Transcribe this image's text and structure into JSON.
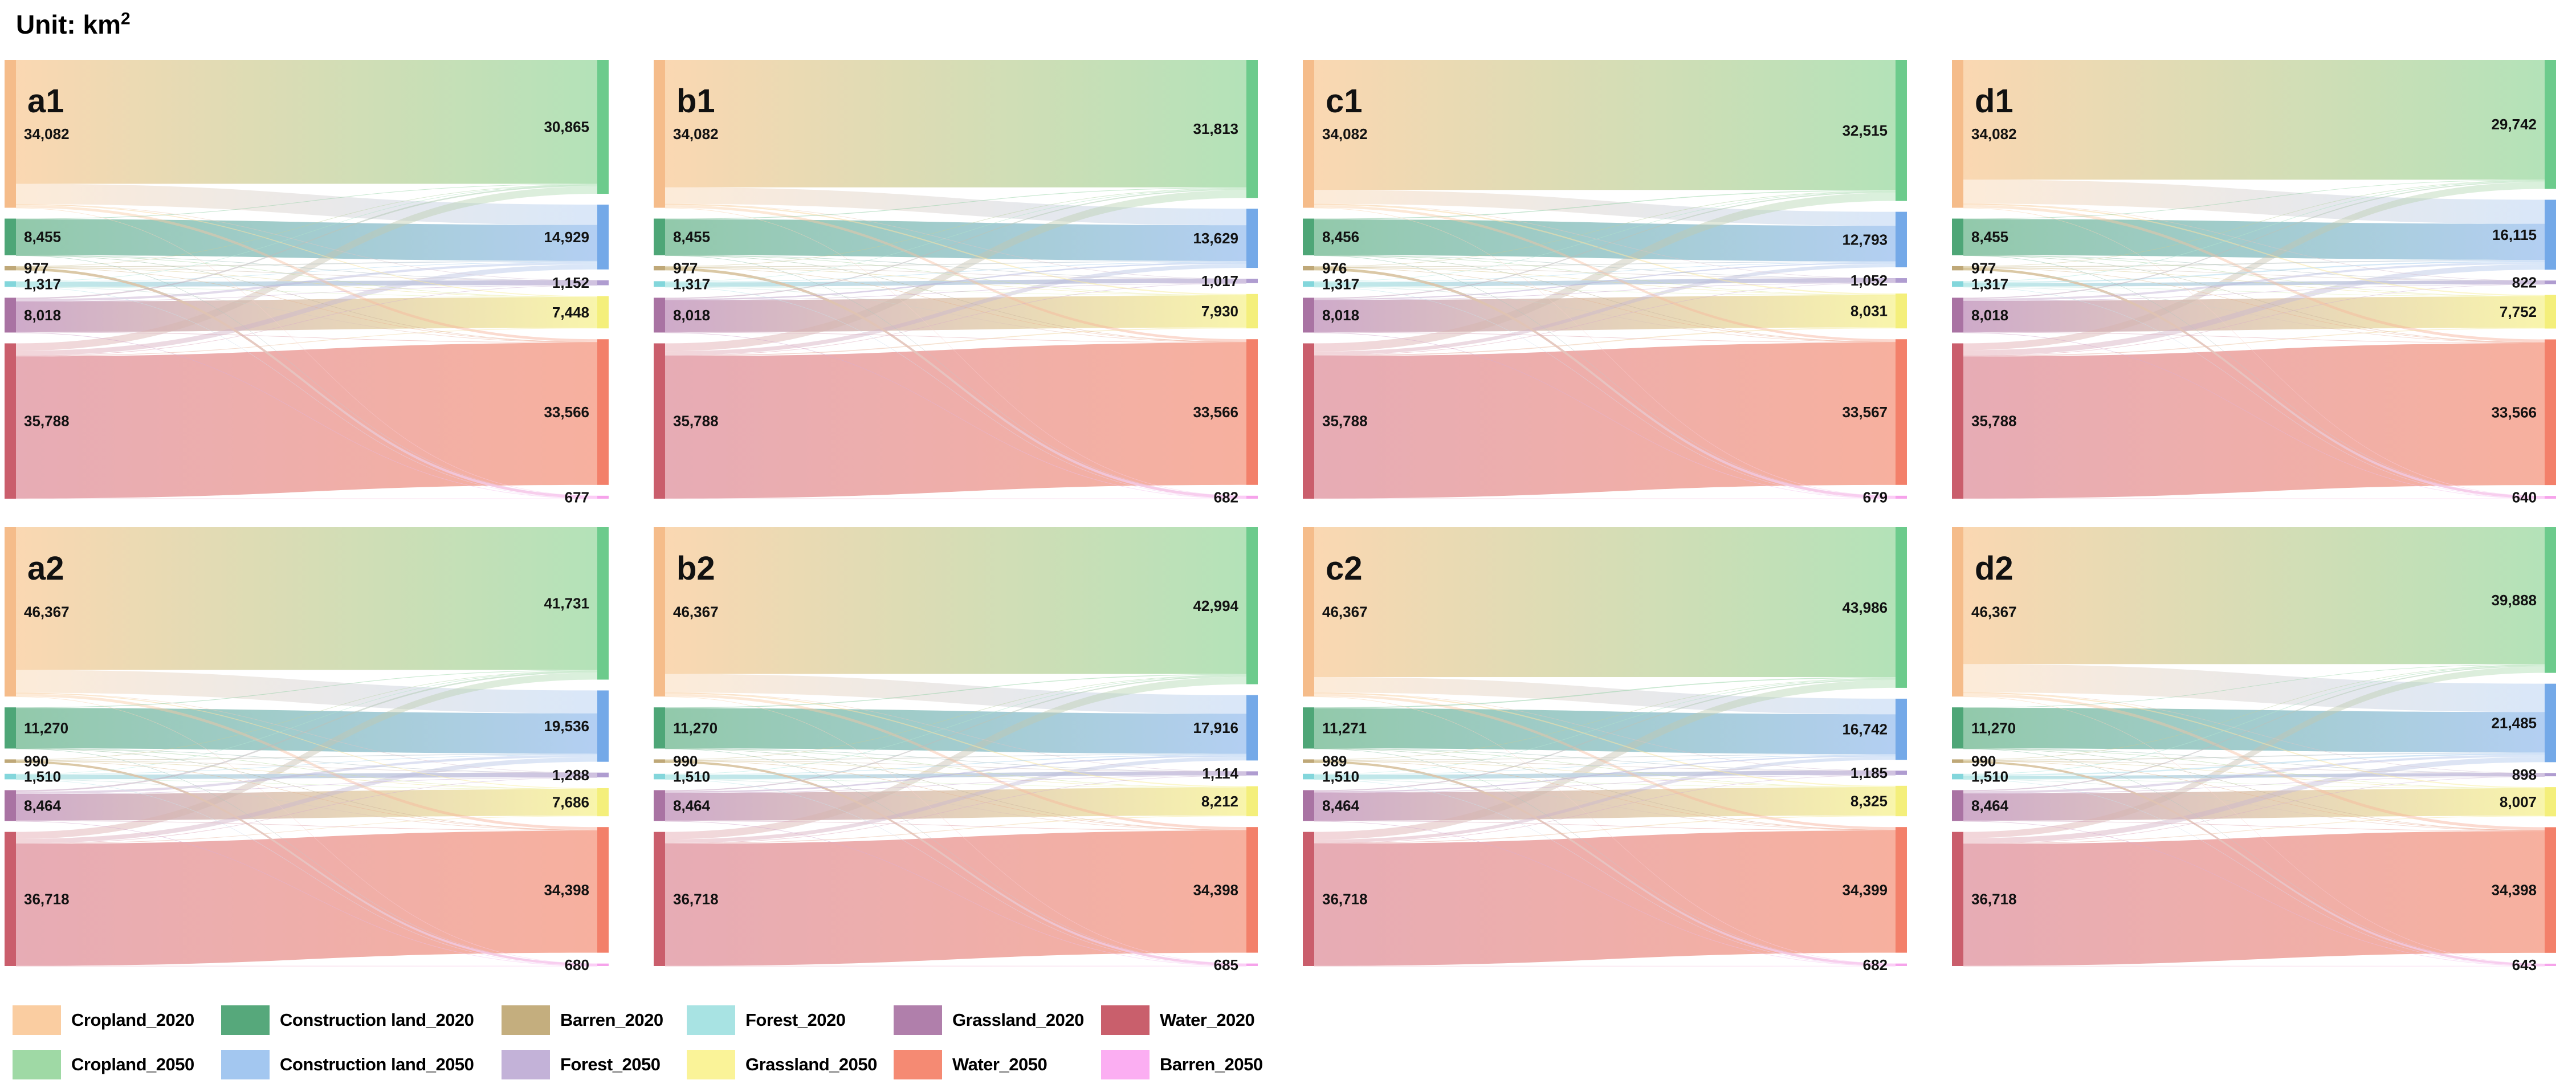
{
  "title": {
    "prefix": "Unit: km",
    "superscript": "2"
  },
  "colors": {
    "node_left": [
      "#F5BC8A",
      "#4EA677",
      "#BFA878",
      "#83D6DB",
      "#A973A3",
      "#CA5E6C"
    ],
    "node_right": [
      "#6CCB8C",
      "#74A9E8",
      "#AF9CD0",
      "#F4EF7B",
      "#F3806A",
      "#F6A3EB"
    ],
    "flow_left": [
      "#FAD3A9",
      "#86C3A1",
      "#D3C192",
      "#B7E9E8",
      "#C9A1C4",
      "#E4A3AD"
    ],
    "flow_right": [
      "#ABDFB1",
      "#ABCAF1",
      "#CBBBDC",
      "#F8F4A3",
      "#F6A894",
      "#FBC9F5"
    ],
    "legend_2020": [
      "#FACDA1",
      "#56A87B",
      "#C4AE7E",
      "#A8E3E3",
      "#B07FAB",
      "#C95F6C"
    ],
    "legend_2050": [
      "#9FD9A5",
      "#A3C7F0",
      "#C3B2D8",
      "#FAF398",
      "#F58A73",
      "#FBAEF2"
    ]
  },
  "chart_data": {
    "type": "sankey",
    "unit": "km2",
    "source_categories": [
      "Cropland_2020",
      "Construction land_2020",
      "Barren_2020",
      "Forest_2020",
      "Grassland_2020",
      "Water_2020"
    ],
    "target_categories": [
      "Cropland_2050",
      "Construction land_2050",
      "Forest_2050",
      "Grassland_2050",
      "Water_2050",
      "Barren_2050"
    ],
    "legend_position": "bottom-left",
    "panels": [
      {
        "label": "a1",
        "source_values": [
          34082,
          8455,
          977,
          1317,
          8018,
          35788
        ],
        "target_values": [
          30865,
          14929,
          1152,
          7448,
          33566,
          677
        ]
      },
      {
        "label": "b1",
        "source_values": [
          34082,
          8455,
          977,
          1317,
          8018,
          35788
        ],
        "target_values": [
          31813,
          13629,
          1017,
          7930,
          33566,
          682
        ]
      },
      {
        "label": "c1",
        "source_values": [
          34082,
          8456,
          976,
          1317,
          8018,
          35788
        ],
        "target_values": [
          32515,
          12793,
          1052,
          8031,
          33567,
          679
        ]
      },
      {
        "label": "d1",
        "source_values": [
          34082,
          8455,
          977,
          1317,
          8018,
          35788
        ],
        "target_values": [
          29742,
          16115,
          822,
          7752,
          33566,
          640
        ]
      },
      {
        "label": "a2",
        "source_values": [
          46367,
          11270,
          990,
          1510,
          8464,
          36718
        ],
        "target_values": [
          41731,
          19536,
          1288,
          7686,
          34398,
          680
        ]
      },
      {
        "label": "b2",
        "source_values": [
          46367,
          11270,
          990,
          1510,
          8464,
          36718
        ],
        "target_values": [
          42994,
          17916,
          1114,
          8212,
          34398,
          685
        ]
      },
      {
        "label": "c2",
        "source_values": [
          46367,
          11271,
          989,
          1510,
          8464,
          36718
        ],
        "target_values": [
          43986,
          16742,
          1185,
          8325,
          34399,
          682
        ]
      },
      {
        "label": "d2",
        "source_values": [
          46367,
          11270,
          990,
          1510,
          8464,
          36718
        ],
        "target_values": [
          39888,
          21485,
          898,
          8007,
          34398,
          643
        ]
      }
    ]
  }
}
